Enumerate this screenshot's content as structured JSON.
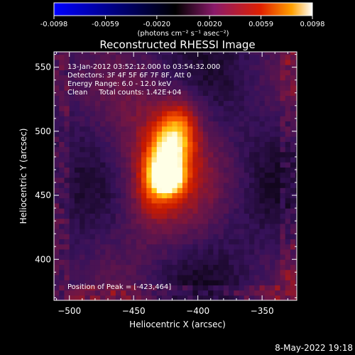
{
  "colorbar": {
    "ticks": [
      "-0.0098",
      "-0.0059",
      "-0.0020",
      "0.0020",
      "0.0059",
      "0.0098"
    ],
    "tick_values": [
      -0.0098,
      -0.0059,
      -0.002,
      0.002,
      0.0059,
      0.0098
    ],
    "range": [
      -0.0098,
      0.0098
    ],
    "unit_label": "(photons cm⁻² s⁻¹ asec⁻²)",
    "colors": [
      "#0000ff",
      "#000000",
      "#8a1a6a",
      "#e02000",
      "#ffa000",
      "#ffffff"
    ]
  },
  "chart_data": {
    "type": "heatmap",
    "title": "Reconstructed RHESSI Image",
    "xlabel": "Heliocentric X (arcsec)",
    "ylabel": "Heliocentric Y (arcsec)",
    "xlim": [
      -512,
      -323
    ],
    "ylim": [
      368,
      562
    ],
    "xticks": [
      -500,
      -450,
      -400,
      -350
    ],
    "yticks": [
      400,
      450,
      500,
      550
    ],
    "xtick_labels": [
      "−500",
      "−450",
      "−400",
      "−350"
    ],
    "ytick_labels": [
      "400",
      "450",
      "500",
      "550"
    ],
    "peak": {
      "x": -423,
      "y": 464
    },
    "annotations": [
      "13-Jan-2012 03:52:12.000 to 03:54:32.000",
      "Detectors: 3F 4F 5F 6F 7F 8F, Att 0",
      "Energy Range: 6.0 - 12.0 keV",
      "Clean     Total counts: 1.42E+04"
    ],
    "peak_label": "Position of Peak = [-423,464]"
  },
  "footer": {
    "timestamp": "8-May-2022 19:18"
  }
}
